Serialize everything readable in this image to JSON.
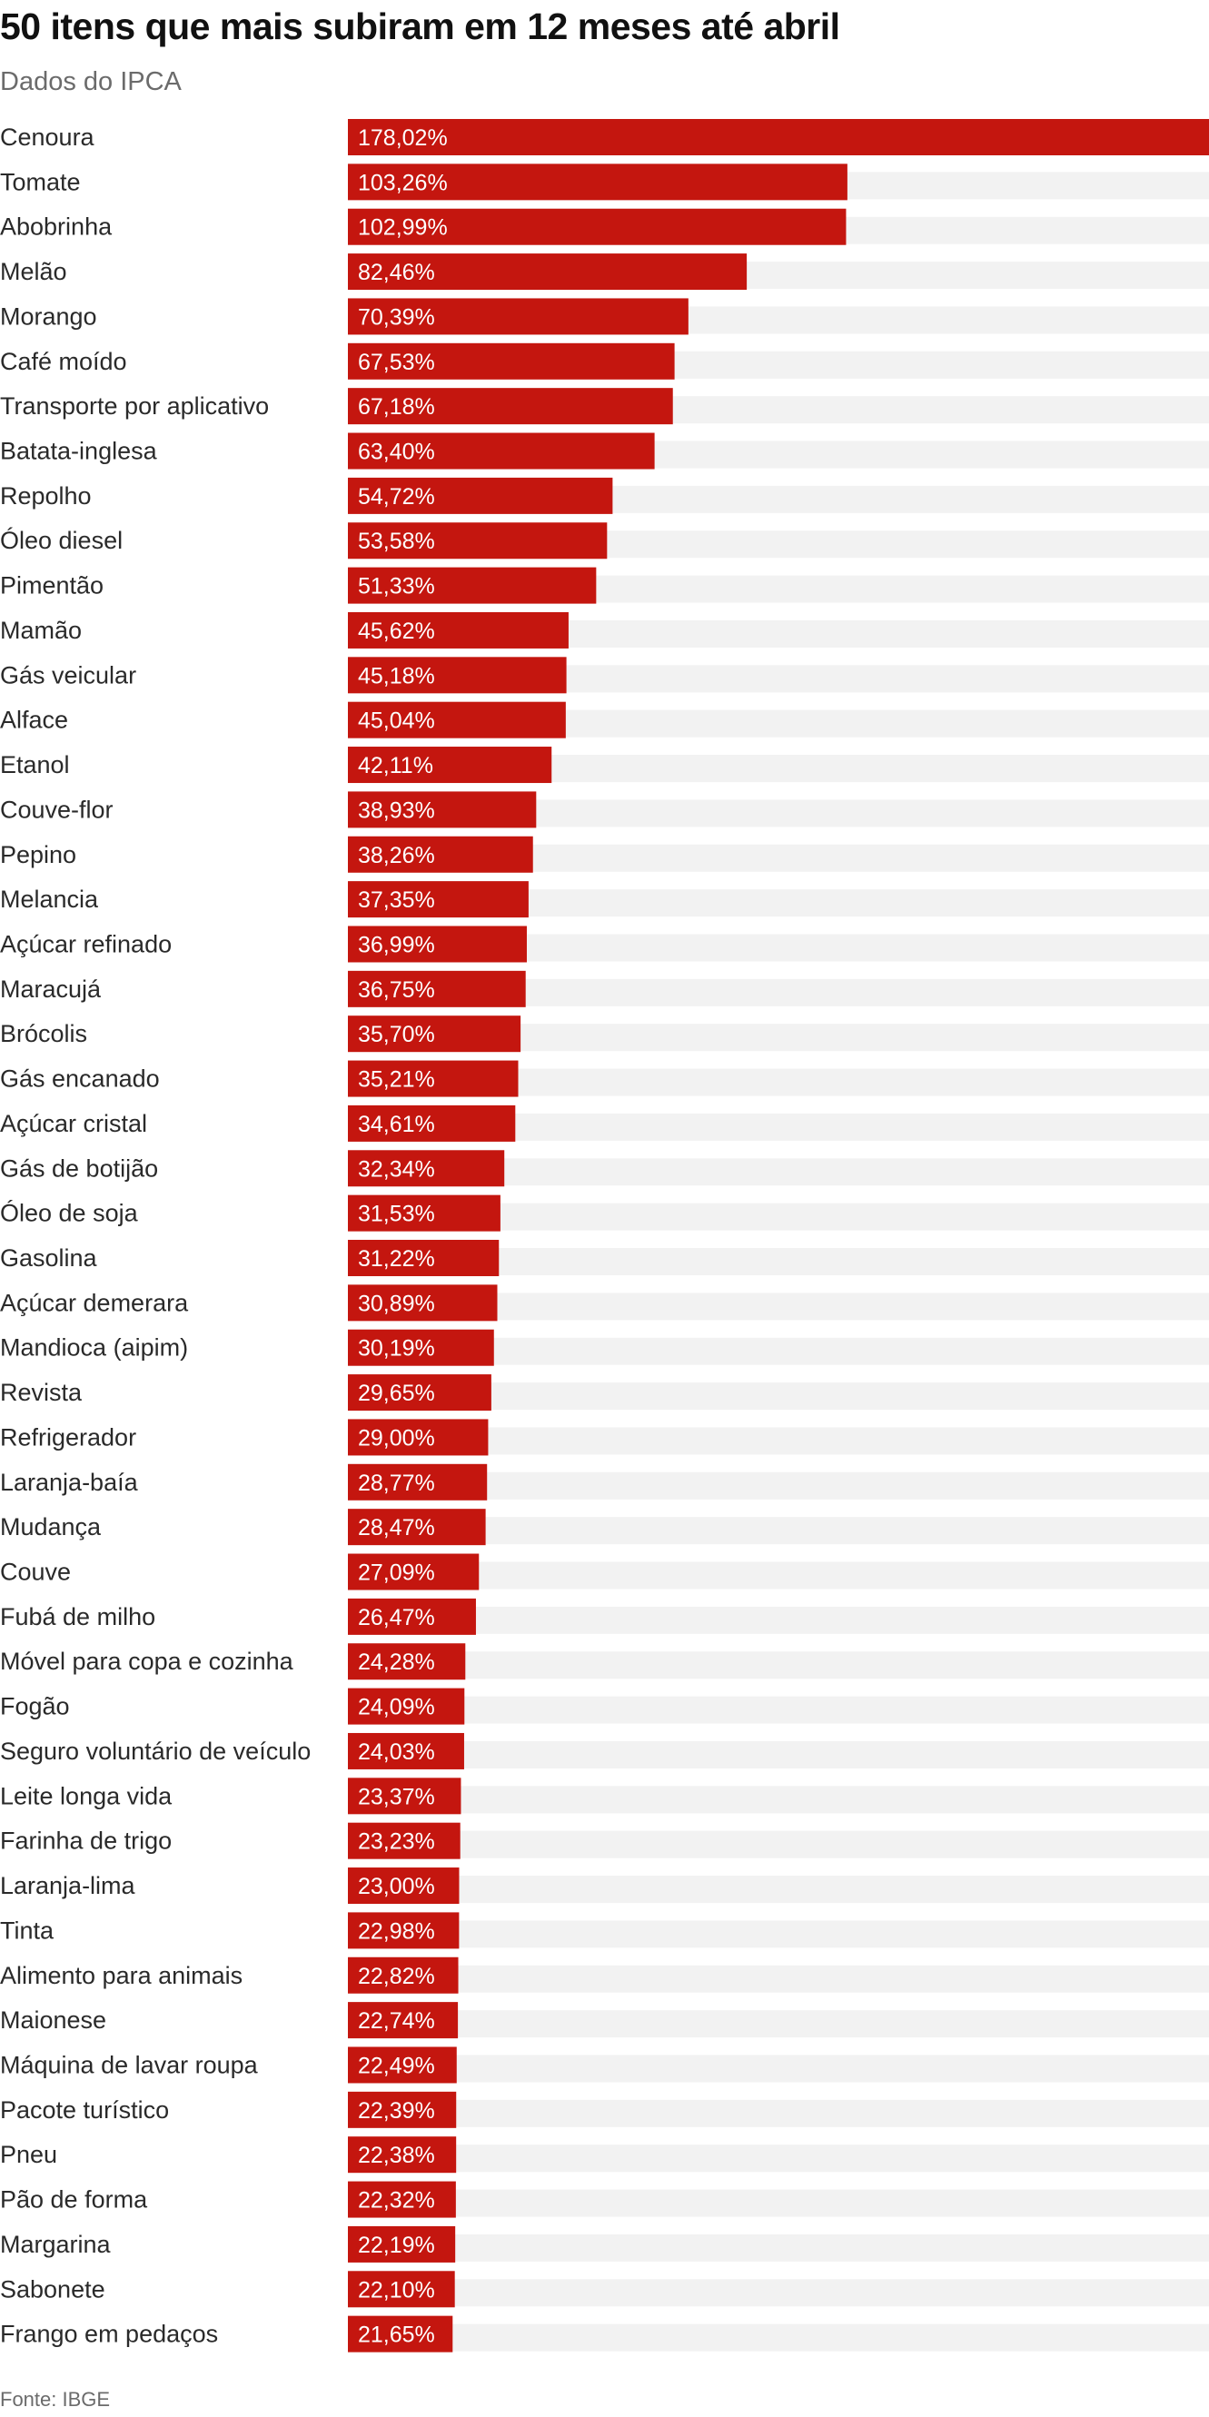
{
  "header": {
    "title": "50 itens que mais subiram em 12 meses até abril",
    "subtitle": "Dados do IPCA"
  },
  "footer": {
    "source": "Fonte: IBGE"
  },
  "colors": {
    "bar": "#c4160f",
    "track": "#f2f2f2",
    "value_text": "#ffffff"
  },
  "chart_data": {
    "type": "bar",
    "orientation": "horizontal",
    "title": "50 itens que mais subiram em 12 meses até abril",
    "subtitle": "Dados do IPCA",
    "xlim": [
      0,
      178.02
    ],
    "grid": false,
    "categories": [
      "Cenoura",
      "Tomate",
      "Abobrinha",
      "Melão",
      "Morango",
      "Café moído",
      "Transporte por aplicativo",
      "Batata-inglesa",
      "Repolho",
      "Óleo diesel",
      "Pimentão",
      "Mamão",
      "Gás veicular",
      "Alface",
      "Etanol",
      "Couve-flor",
      "Pepino",
      "Melancia",
      "Açúcar refinado",
      "Maracujá",
      "Brócolis",
      "Gás encanado",
      "Açúcar cristal",
      "Gás de botijão",
      "Óleo de soja",
      "Gasolina",
      "Açúcar demerara",
      "Mandioca (aipim)",
      "Revista",
      "Refrigerador",
      "Laranja-baía",
      "Mudança",
      "Couve",
      "Fubá de milho",
      "Móvel para copa e cozinha",
      "Fogão",
      "Seguro voluntário de veículo",
      "Leite longa vida",
      "Farinha de trigo",
      "Laranja-lima",
      "Tinta",
      "Alimento para animais",
      "Maionese",
      "Máquina de lavar roupa",
      "Pacote turístico",
      "Pneu",
      "Pão de forma",
      "Margarina",
      "Sabonete",
      "Frango em pedaços"
    ],
    "values": [
      178.02,
      103.26,
      102.99,
      82.46,
      70.39,
      67.53,
      67.18,
      63.4,
      54.72,
      53.58,
      51.33,
      45.62,
      45.18,
      45.04,
      42.11,
      38.93,
      38.26,
      37.35,
      36.99,
      36.75,
      35.7,
      35.21,
      34.61,
      32.34,
      31.53,
      31.22,
      30.89,
      30.19,
      29.65,
      29.0,
      28.77,
      28.47,
      27.09,
      26.47,
      24.28,
      24.09,
      24.03,
      23.37,
      23.23,
      23.0,
      22.98,
      22.82,
      22.74,
      22.49,
      22.39,
      22.38,
      22.32,
      22.19,
      22.1,
      21.65
    ],
    "value_labels": [
      "178,02%",
      "103,26%",
      "102,99%",
      "82,46%",
      "70,39%",
      "67,53%",
      "67,18%",
      "63,40%",
      "54,72%",
      "53,58%",
      "51,33%",
      "45,62%",
      "45,18%",
      "45,04%",
      "42,11%",
      "38,93%",
      "38,26%",
      "37,35%",
      "36,99%",
      "36,75%",
      "35,70%",
      "35,21%",
      "34,61%",
      "32,34%",
      "31,53%",
      "31,22%",
      "30,89%",
      "30,19%",
      "29,65%",
      "29,00%",
      "28,77%",
      "28,47%",
      "27,09%",
      "26,47%",
      "24,28%",
      "24,09%",
      "24,03%",
      "23,37%",
      "23,23%",
      "23,00%",
      "22,98%",
      "22,82%",
      "22,74%",
      "22,49%",
      "22,39%",
      "22,38%",
      "22,32%",
      "22,19%",
      "22,10%",
      "21,65%"
    ]
  }
}
